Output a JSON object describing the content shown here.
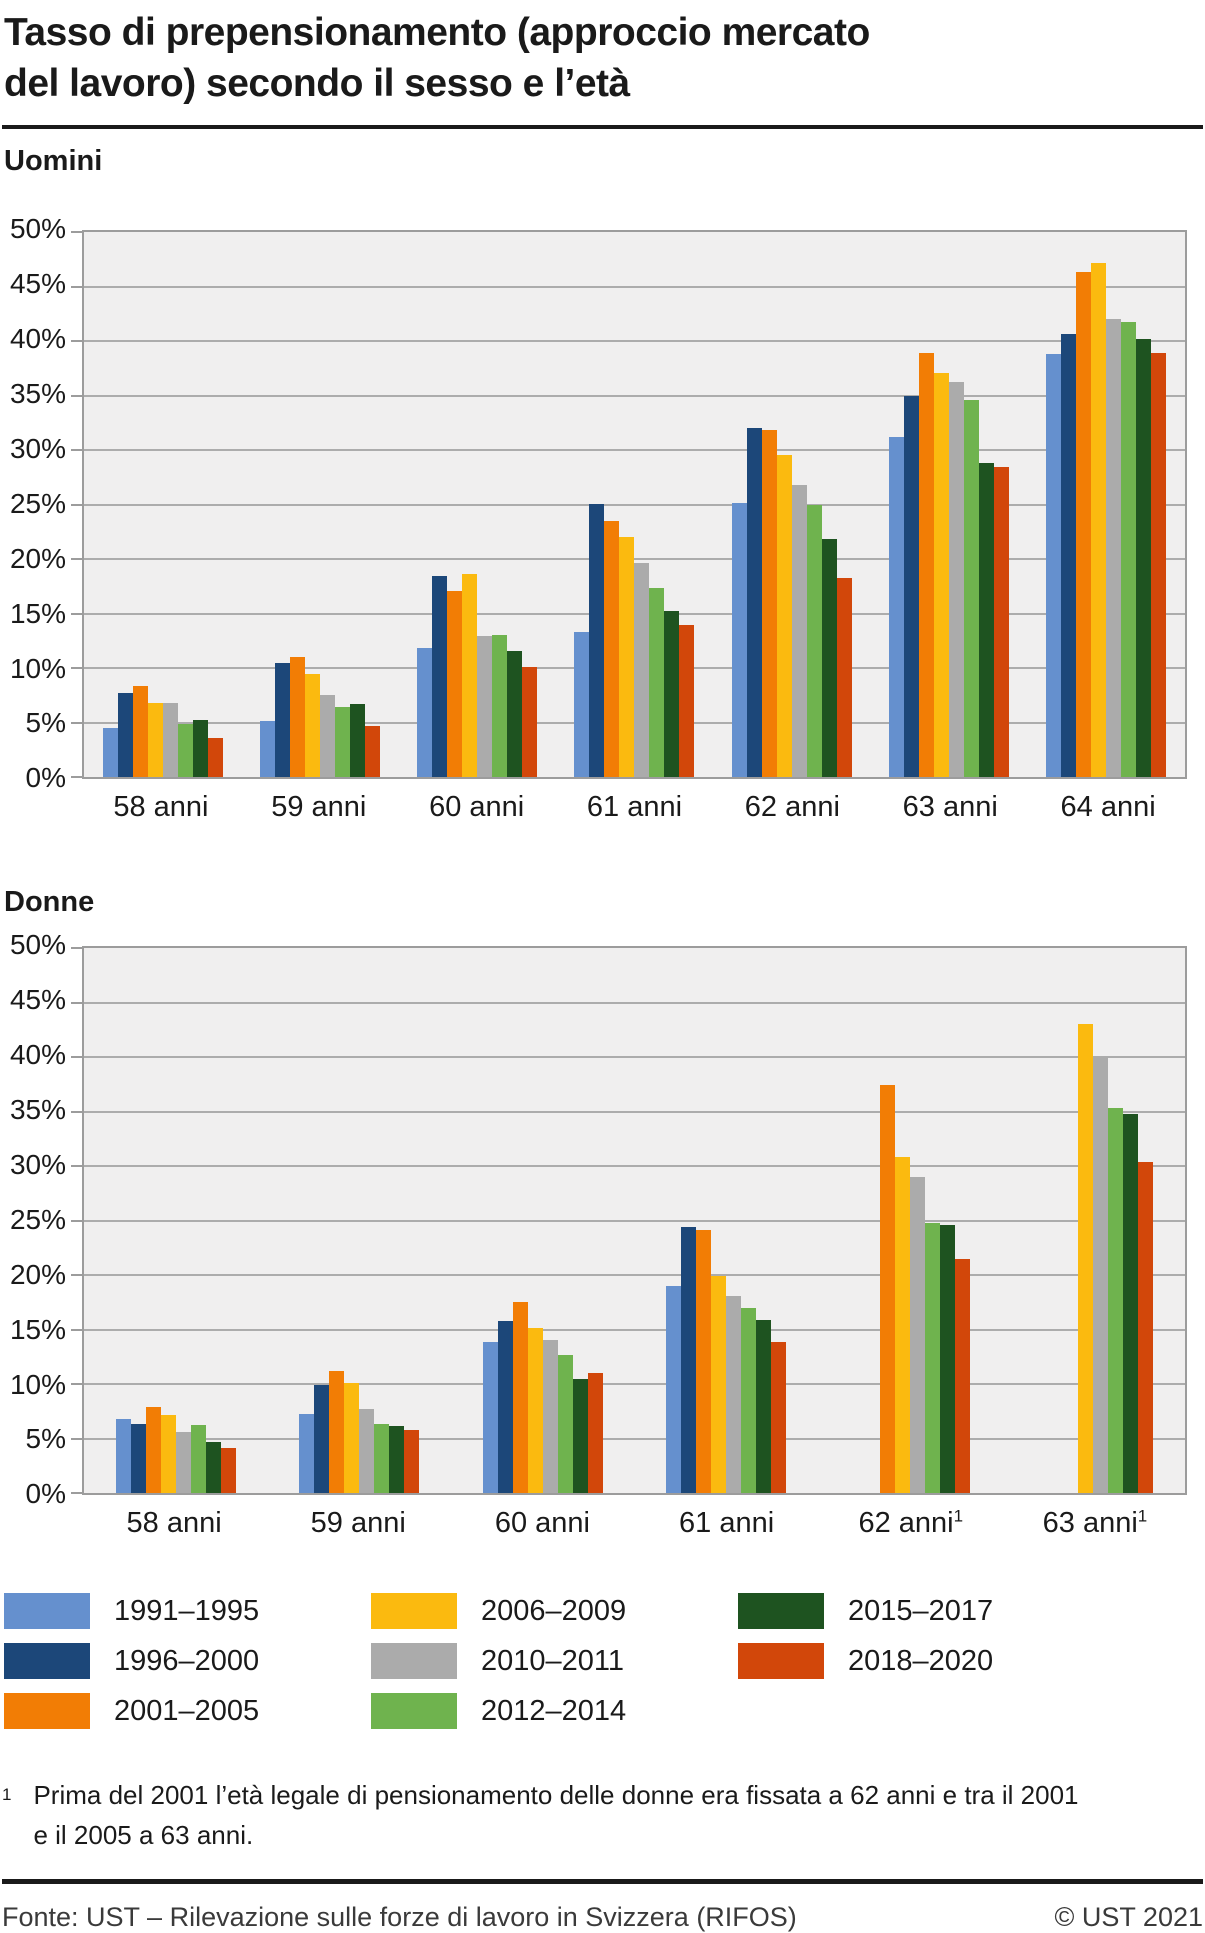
{
  "title": "Tasso di prepensionamento (approccio mercato del lavoro) secondo il sesso e l’età",
  "sections": {
    "men": "Uomini",
    "women": "Donne"
  },
  "series": [
    {
      "name": "1991–1995",
      "color": "#6590CE"
    },
    {
      "name": "1996–2000",
      "color": "#1C4779"
    },
    {
      "name": "2001–2005",
      "color": "#F27D05"
    },
    {
      "name": "2006–2009",
      "color": "#FBBA0F"
    },
    {
      "name": "2010–2011",
      "color": "#ABABAB"
    },
    {
      "name": "2012–2014",
      "color": "#6FB34E"
    },
    {
      "name": "2015–2017",
      "color": "#1E5320"
    },
    {
      "name": "2018–2020",
      "color": "#D2470A"
    }
  ],
  "chart_data": [
    {
      "type": "bar",
      "title": "Uomini",
      "categories": [
        {
          "label": "58 anni",
          "sup": ""
        },
        {
          "label": "59 anni",
          "sup": ""
        },
        {
          "label": "60 anni",
          "sup": ""
        },
        {
          "label": "61 anni",
          "sup": ""
        },
        {
          "label": "62 anni",
          "sup": ""
        },
        {
          "label": "63 anni",
          "sup": ""
        },
        {
          "label": "64 anni",
          "sup": ""
        }
      ],
      "series": [
        {
          "name": "1991–1995",
          "values": [
            4.5,
            5.2,
            11.9,
            13.3,
            25.2,
            31.2,
            38.8
          ]
        },
        {
          "name": "1996–2000",
          "values": [
            7.7,
            10.5,
            18.5,
            25.1,
            32.1,
            35.0,
            40.7
          ]
        },
        {
          "name": "2001–2005",
          "values": [
            8.4,
            11.0,
            17.1,
            23.5,
            31.9,
            38.9,
            46.4
          ]
        },
        {
          "name": "2006–2009",
          "values": [
            6.8,
            9.5,
            18.7,
            22.1,
            29.6,
            37.1,
            47.2
          ]
        },
        {
          "name": "2010–2011",
          "values": [
            6.8,
            7.6,
            13.0,
            19.7,
            26.8,
            36.3,
            42.1
          ]
        },
        {
          "name": "2012–2014",
          "values": [
            4.9,
            6.5,
            13.1,
            17.4,
            25.0,
            34.6,
            41.8
          ]
        },
        {
          "name": "2015–2017",
          "values": [
            5.3,
            6.7,
            11.6,
            15.3,
            21.9,
            28.8,
            40.2
          ]
        },
        {
          "name": "2018–2020",
          "values": [
            3.6,
            4.7,
            10.1,
            14.0,
            18.3,
            28.5,
            38.9
          ]
        }
      ],
      "ylim": [
        0,
        50
      ],
      "yticks": [
        "0%",
        "5%",
        "10%",
        "15%",
        "20%",
        "25%",
        "30%",
        "35%",
        "40%",
        "45%",
        "50%"
      ],
      "grid": true,
      "legend_position": "bottom-shared"
    },
    {
      "type": "bar",
      "title": "Donne",
      "categories": [
        {
          "label": "58 anni",
          "sup": ""
        },
        {
          "label": "59 anni",
          "sup": ""
        },
        {
          "label": "60 anni",
          "sup": ""
        },
        {
          "label": "61 anni",
          "sup": ""
        },
        {
          "label": "62 anni",
          "sup": "1"
        },
        {
          "label": "63 anni",
          "sup": "1"
        }
      ],
      "series": [
        {
          "name": "1991–1995",
          "values": [
            6.8,
            7.3,
            13.9,
            19.0,
            null,
            null
          ]
        },
        {
          "name": "1996–2000",
          "values": [
            6.4,
            9.9,
            15.8,
            24.4,
            null,
            null
          ]
        },
        {
          "name": "2001–2005",
          "values": [
            7.9,
            11.2,
            17.6,
            24.2,
            37.5,
            null
          ]
        },
        {
          "name": "2006–2009",
          "values": [
            7.2,
            10.1,
            15.2,
            19.9,
            30.9,
            43.1
          ]
        },
        {
          "name": "2010–2011",
          "values": [
            5.6,
            7.7,
            14.1,
            18.1,
            29.0,
            40.0
          ]
        },
        {
          "name": "2012–2014",
          "values": [
            6.3,
            6.4,
            12.7,
            17.0,
            24.8,
            35.4
          ]
        },
        {
          "name": "2015–2017",
          "values": [
            4.7,
            6.2,
            10.5,
            15.9,
            24.6,
            34.8
          ]
        },
        {
          "name": "2018–2020",
          "values": [
            4.2,
            5.8,
            11.0,
            13.9,
            21.5,
            30.4
          ]
        }
      ],
      "ylim": [
        0,
        50
      ],
      "yticks": [
        "0%",
        "5%",
        "10%",
        "15%",
        "20%",
        "25%",
        "30%",
        "35%",
        "40%",
        "45%",
        "50%"
      ],
      "grid": true,
      "legend_position": "bottom-shared"
    }
  ],
  "legend": {
    "columns": [
      [
        0,
        1,
        2
      ],
      [
        3,
        4,
        5
      ],
      [
        6,
        7
      ]
    ]
  },
  "footnote": {
    "marker": "1",
    "lines": [
      "Prima del 2001 l’età legale di pensionamento delle donne era fissata a 62 anni e tra il 2001",
      "e il 2005 a 63 anni."
    ]
  },
  "footer": {
    "source": "Fonte: UST – Rilevazione sulle forze di lavoro in Svizzera (RIFOS)",
    "copyright": "© UST 2021"
  }
}
